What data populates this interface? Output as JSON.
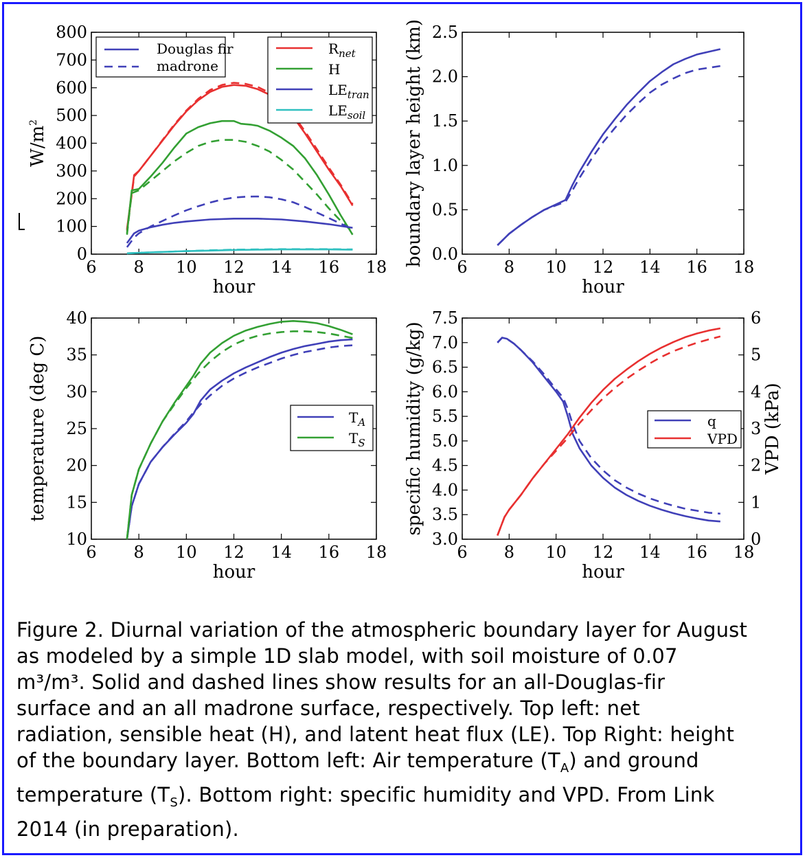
{
  "chart_data": [
    {
      "type": "line",
      "xlabel": "hour",
      "ylabel": "W/m",
      "ylabel_sup": "2",
      "xlim": [
        6,
        18
      ],
      "ylim": [
        0,
        800
      ],
      "xticks": [
        "6",
        "8",
        "10",
        "12",
        "14",
        "16",
        "18"
      ],
      "yticks": [
        "0",
        "100",
        "200",
        "300",
        "400",
        "500",
        "600",
        "700",
        "800"
      ],
      "legend_style": [
        {
          "name": "Douglas fir",
          "dash": "solid"
        },
        {
          "name": "madrone",
          "dash": "dashed"
        }
      ],
      "legend_series": [
        {
          "name": "R",
          "sub": "net",
          "color": "#e83030"
        },
        {
          "name": "H",
          "sub": "",
          "color": "#33a033"
        },
        {
          "name": "LE",
          "sub": "tran",
          "color": "#4040b8"
        },
        {
          "name": "LE",
          "sub": "soil",
          "color": "#30c0c0"
        }
      ],
      "series": [
        {
          "color": "#e83030",
          "dash": "solid",
          "x": [
            7.5,
            7.8,
            8.0,
            8.5,
            9.0,
            9.5,
            10.0,
            10.5,
            11.0,
            11.5,
            12.0,
            12.5,
            13.0,
            13.5,
            14.0,
            14.5,
            15.0,
            15.5,
            16.0,
            16.5,
            17.0
          ],
          "y": [
            90,
            285,
            300,
            355,
            410,
            465,
            515,
            555,
            585,
            603,
            610,
            607,
            595,
            575,
            540,
            495,
            435,
            370,
            305,
            245,
            175
          ]
        },
        {
          "color": "#e83030",
          "dash": "dashed",
          "x": [
            7.5,
            7.8,
            8.0,
            8.5,
            9.0,
            9.5,
            10.0,
            10.5,
            11.0,
            11.5,
            12.0,
            12.5,
            13.0,
            13.5,
            14.0,
            14.5,
            15.0,
            15.5,
            16.0,
            16.5,
            17.0
          ],
          "y": [
            85,
            280,
            300,
            355,
            412,
            468,
            518,
            560,
            592,
            610,
            618,
            614,
            603,
            582,
            548,
            502,
            442,
            378,
            312,
            250,
            180
          ]
        },
        {
          "color": "#33a033",
          "dash": "solid",
          "x": [
            7.5,
            7.7,
            8.0,
            8.5,
            9.0,
            9.5,
            10.0,
            10.5,
            11.0,
            11.5,
            12.0,
            12.3,
            12.7,
            13.0,
            13.5,
            14.0,
            14.5,
            15.0,
            15.5,
            16.0,
            16.5,
            17.0
          ],
          "y": [
            75,
            230,
            235,
            280,
            330,
            385,
            435,
            458,
            472,
            480,
            480,
            470,
            467,
            463,
            445,
            420,
            390,
            345,
            285,
            215,
            140,
            70
          ]
        },
        {
          "color": "#33a033",
          "dash": "dashed",
          "x": [
            7.5,
            7.7,
            8.0,
            8.5,
            9.0,
            9.5,
            10.0,
            10.5,
            11.0,
            11.5,
            12.0,
            12.5,
            13.0,
            13.5,
            14.0,
            14.5,
            15.0,
            15.5,
            16.0,
            16.5,
            17.0
          ],
          "y": [
            70,
            220,
            230,
            265,
            300,
            335,
            365,
            390,
            405,
            412,
            412,
            405,
            390,
            370,
            340,
            305,
            260,
            215,
            165,
            120,
            80
          ]
        },
        {
          "color": "#4040b8",
          "dash": "solid",
          "x": [
            7.5,
            7.8,
            8.0,
            8.5,
            9.0,
            9.5,
            10.0,
            11.0,
            12.0,
            13.0,
            14.0,
            15.0,
            16.0,
            17.0
          ],
          "y": [
            40,
            75,
            85,
            97,
            106,
            113,
            118,
            125,
            128,
            128,
            125,
            118,
            108,
            95
          ]
        },
        {
          "color": "#4040b8",
          "dash": "dashed",
          "x": [
            7.5,
            7.8,
            8.0,
            8.5,
            9.0,
            9.5,
            10.0,
            10.5,
            11.0,
            11.5,
            12.0,
            12.5,
            13.0,
            13.5,
            14.0,
            14.5,
            15.0,
            15.5,
            16.0,
            16.5,
            17.0
          ],
          "y": [
            25,
            60,
            75,
            100,
            120,
            140,
            158,
            173,
            186,
            197,
            204,
            207,
            208,
            205,
            198,
            187,
            170,
            150,
            130,
            110,
            90
          ]
        },
        {
          "color": "#30c0c0",
          "dash": "solid",
          "x": [
            7.5,
            8.0,
            9.0,
            10.0,
            11.0,
            12.0,
            13.0,
            14.0,
            15.0,
            16.0,
            17.0
          ],
          "y": [
            3,
            5,
            8,
            11,
            13,
            15,
            16,
            17,
            17,
            17,
            16
          ]
        },
        {
          "color": "#30c0c0",
          "dash": "dashed",
          "x": [
            7.5,
            8.0,
            9.0,
            10.0,
            11.0,
            12.0,
            13.0,
            14.0,
            15.0,
            16.0,
            17.0
          ],
          "y": [
            3,
            5,
            8,
            11,
            14,
            16,
            17,
            18,
            18,
            18,
            17
          ]
        }
      ]
    },
    {
      "type": "line",
      "xlabel": "hour",
      "ylabel": "boundary layer height (km)",
      "xlim": [
        6,
        18
      ],
      "ylim": [
        0,
        2.5
      ],
      "xticks": [
        "6",
        "8",
        "10",
        "12",
        "14",
        "16",
        "18"
      ],
      "yticks": [
        "0.0",
        "0.5",
        "1.0",
        "1.5",
        "2.0",
        "2.5"
      ],
      "series": [
        {
          "color": "#4040b8",
          "dash": "solid",
          "x": [
            7.5,
            8.0,
            8.5,
            9.0,
            9.5,
            10.0,
            10.4,
            10.7,
            11.0,
            11.5,
            12.0,
            12.5,
            13.0,
            13.5,
            14.0,
            14.5,
            15.0,
            15.5,
            16.0,
            16.5,
            17.0
          ],
          "y": [
            0.1,
            0.23,
            0.33,
            0.42,
            0.5,
            0.56,
            0.61,
            0.78,
            0.93,
            1.15,
            1.35,
            1.52,
            1.68,
            1.82,
            1.95,
            2.05,
            2.14,
            2.2,
            2.25,
            2.28,
            2.31
          ]
        },
        {
          "color": "#4040b8",
          "dash": "dashed",
          "x": [
            7.5,
            8.0,
            8.5,
            9.0,
            9.5,
            10.0,
            10.4,
            10.7,
            11.0,
            11.5,
            12.0,
            12.5,
            13.0,
            13.5,
            14.0,
            14.5,
            15.0,
            15.5,
            16.0,
            16.5,
            17.0
          ],
          "y": [
            0.1,
            0.23,
            0.33,
            0.42,
            0.5,
            0.55,
            0.59,
            0.72,
            0.86,
            1.07,
            1.26,
            1.42,
            1.57,
            1.7,
            1.82,
            1.91,
            1.98,
            2.04,
            2.08,
            2.1,
            2.12
          ]
        }
      ]
    },
    {
      "type": "line",
      "xlabel": "hour",
      "ylabel": "temperature (deg C)",
      "xlim": [
        6,
        18
      ],
      "ylim": [
        10,
        40
      ],
      "xticks": [
        "6",
        "8",
        "10",
        "12",
        "14",
        "16",
        "18"
      ],
      "yticks": [
        "10",
        "15",
        "20",
        "25",
        "30",
        "35",
        "40"
      ],
      "legend_series": [
        {
          "name": "T",
          "sub": "A",
          "color": "#4040b8"
        },
        {
          "name": "T",
          "sub": "S",
          "color": "#33a033"
        }
      ],
      "series": [
        {
          "color": "#4040b8",
          "dash": "solid",
          "x": [
            7.5,
            7.7,
            8.0,
            8.5,
            9.0,
            9.5,
            10.0,
            10.3,
            10.6,
            11.0,
            11.5,
            12.0,
            12.5,
            13.0,
            13.5,
            14.0,
            14.5,
            15.0,
            15.5,
            16.0,
            16.5,
            17.0
          ],
          "y": [
            10,
            14.5,
            17.5,
            20.5,
            22.5,
            24.2,
            25.8,
            27,
            28.8,
            30.3,
            31.5,
            32.5,
            33.3,
            34.0,
            34.7,
            35.3,
            35.8,
            36.2,
            36.5,
            36.8,
            37.0,
            37.1
          ]
        },
        {
          "color": "#4040b8",
          "dash": "dashed",
          "x": [
            7.5,
            7.7,
            8.0,
            8.5,
            9.0,
            9.5,
            10.0,
            10.3,
            10.6,
            11.0,
            11.5,
            12.0,
            12.5,
            13.0,
            13.5,
            14.0,
            14.5,
            15.0,
            15.5,
            16.0,
            16.5,
            17.0
          ],
          "y": [
            10,
            14.5,
            17.5,
            20.5,
            22.5,
            24.3,
            26.0,
            27.2,
            28.3,
            29.5,
            30.8,
            31.8,
            32.6,
            33.3,
            33.9,
            34.5,
            35.0,
            35.4,
            35.7,
            36.0,
            36.2,
            36.3
          ]
        },
        {
          "color": "#33a033",
          "dash": "solid",
          "x": [
            7.5,
            7.7,
            8.0,
            8.5,
            9.0,
            9.5,
            10.0,
            10.3,
            10.6,
            11.0,
            11.5,
            12.0,
            12.5,
            13.0,
            13.5,
            14.0,
            14.5,
            15.0,
            15.5,
            16.0,
            16.5,
            17.0
          ],
          "y": [
            10,
            16,
            19.5,
            23,
            26,
            28.5,
            30.8,
            32.2,
            33.8,
            35.3,
            36.6,
            37.6,
            38.3,
            38.8,
            39.2,
            39.5,
            39.6,
            39.5,
            39.3,
            38.9,
            38.4,
            37.8
          ]
        },
        {
          "color": "#33a033",
          "dash": "dashed",
          "x": [
            7.5,
            7.7,
            8.0,
            8.5,
            9.0,
            9.5,
            10.0,
            10.5,
            11.0,
            11.5,
            12.0,
            12.5,
            13.0,
            13.5,
            14.0,
            14.5,
            15.0,
            15.5,
            16.0,
            16.5,
            17.0
          ],
          "y": [
            10,
            16,
            19.5,
            23,
            26,
            28.3,
            30.5,
            32.5,
            34.1,
            35.4,
            36.4,
            37.1,
            37.6,
            37.9,
            38.1,
            38.2,
            38.2,
            38.1,
            37.9,
            37.6,
            37.3
          ]
        }
      ]
    },
    {
      "type": "line",
      "xlabel": "hour",
      "ylabel": "specific humidity (g/kg)",
      "ylabel_right": "VPD (kPa)",
      "xlim": [
        6,
        18
      ],
      "ylim": [
        3.0,
        7.5
      ],
      "ylim_right": [
        0,
        6
      ],
      "xticks": [
        "6",
        "8",
        "10",
        "12",
        "14",
        "16",
        "18"
      ],
      "yticks": [
        "3.0",
        "3.5",
        "4.0",
        "4.5",
        "5.0",
        "5.5",
        "6.0",
        "6.5",
        "7.0",
        "7.5"
      ],
      "yticks_right": [
        "0",
        "1",
        "2",
        "3",
        "4",
        "5",
        "6"
      ],
      "legend_series": [
        {
          "name": "q",
          "color": "#4040b8"
        },
        {
          "name": "VPD",
          "color": "#e83030"
        }
      ],
      "series": [
        {
          "color": "#4040b8",
          "dash": "solid",
          "axis": "left",
          "x": [
            7.5,
            7.7,
            7.9,
            8.2,
            8.5,
            9.0,
            9.5,
            10.0,
            10.3,
            10.5,
            10.7,
            11.0,
            11.5,
            12.0,
            12.5,
            13.0,
            13.5,
            14.0,
            14.5,
            15.0,
            15.5,
            16.0,
            16.5,
            17.0
          ],
          "y": [
            7.0,
            7.1,
            7.08,
            6.98,
            6.85,
            6.6,
            6.3,
            6.0,
            5.8,
            5.5,
            5.15,
            4.85,
            4.5,
            4.25,
            4.05,
            3.9,
            3.78,
            3.68,
            3.6,
            3.53,
            3.47,
            3.42,
            3.38,
            3.36
          ]
        },
        {
          "color": "#4040b8",
          "dash": "dashed",
          "axis": "left",
          "x": [
            7.5,
            7.7,
            7.9,
            8.2,
            8.5,
            9.0,
            9.5,
            10.0,
            10.3,
            10.5,
            10.7,
            11.0,
            11.5,
            12.0,
            12.5,
            13.0,
            13.5,
            14.0,
            14.5,
            15.0,
            15.5,
            16.0,
            16.5,
            17.0
          ],
          "y": [
            7.0,
            7.1,
            7.08,
            6.98,
            6.85,
            6.62,
            6.35,
            6.05,
            5.88,
            5.65,
            5.35,
            5.0,
            4.65,
            4.4,
            4.2,
            4.05,
            3.93,
            3.83,
            3.75,
            3.68,
            3.62,
            3.58,
            3.54,
            3.52
          ]
        },
        {
          "color": "#e83030",
          "dash": "solid",
          "axis": "right",
          "x": [
            7.5,
            7.8,
            8.0,
            8.5,
            9.0,
            9.5,
            10.0,
            10.5,
            11.0,
            11.5,
            12.0,
            12.5,
            13.0,
            13.5,
            14.0,
            14.5,
            15.0,
            15.5,
            16.0,
            16.5,
            17.0
          ],
          "y": [
            0.1,
            0.6,
            0.8,
            1.2,
            1.65,
            2.05,
            2.45,
            2.85,
            3.3,
            3.7,
            4.05,
            4.35,
            4.6,
            4.83,
            5.03,
            5.2,
            5.35,
            5.48,
            5.58,
            5.66,
            5.72
          ]
        },
        {
          "color": "#e83030",
          "dash": "dashed",
          "axis": "right",
          "x": [
            7.5,
            7.8,
            8.0,
            8.5,
            9.0,
            9.5,
            10.0,
            10.5,
            11.0,
            11.5,
            12.0,
            12.5,
            13.0,
            13.5,
            14.0,
            14.5,
            15.0,
            15.5,
            16.0,
            16.5,
            17.0
          ],
          "y": [
            0.1,
            0.6,
            0.8,
            1.2,
            1.65,
            2.05,
            2.4,
            2.75,
            3.15,
            3.5,
            3.82,
            4.1,
            4.35,
            4.57,
            4.77,
            4.95,
            5.1,
            5.22,
            5.33,
            5.42,
            5.5
          ]
        }
      ]
    }
  ],
  "caption": [
    {
      "text": "Figure 2. Diurnal variation of the atmospheric boundary layer for August"
    },
    {
      "text": "as modeled by a simple 1D slab model, with soil moisture of 0.07"
    },
    {
      "text": "m³/m³.  Solid and dashed lines show results for an all-Douglas-fir"
    },
    {
      "text": "surface and an all madrone surface, respectively.  Top left:  net"
    },
    {
      "text": "radiation, sensible heat (H), and latent heat flux (LE).  Top Right: height"
    },
    {
      "text": "of the boundary layer.  Bottom left: Air temperature (T"
    },
    {
      "text": "temperature (T"
    },
    {
      "text": "2014 (in preparation)."
    }
  ],
  "caption_parts": {
    "line6_sub": "A",
    "line6_rest": ") and ground",
    "line7_sub": "S",
    "line7_rest": ").  Bottom right:  specific humidity and VPD.  From Link"
  }
}
